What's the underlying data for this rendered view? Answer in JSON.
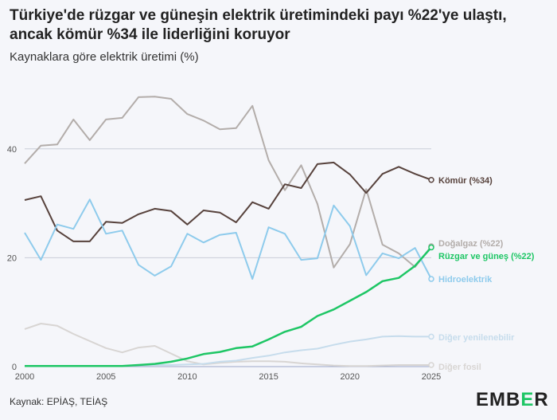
{
  "title": "Türkiye'de rüzgar ve güneşin elektrik üretimindeki payı %22'ye ulaştı, ancak kömür %34 ile liderliğini koruyor",
  "subtitle": "Kaynaklara göre elektrik üretimi (%)",
  "source": "Kaynak: EPİAŞ, TEİAŞ",
  "logo": {
    "pre": "EMB",
    "mid": "E",
    "post": "R"
  },
  "chart_data": {
    "type": "line",
    "title": "Türkiye'de rüzgar ve güneşin elektrik üretimindeki payı %22'ye ulaştı, ancak kömür %34 ile liderliğini koruyor",
    "ylabel": "Kaynaklara göre elektrik üretimi (%)",
    "xlabel": "",
    "xlim": [
      2000,
      2025
    ],
    "ylim": [
      0,
      50
    ],
    "x_ticks": [
      "2000",
      "2005",
      "2010",
      "2015",
      "2020",
      "2025"
    ],
    "y_ticks": [
      "0",
      "20",
      "40"
    ],
    "grid": true,
    "x": [
      2000,
      2001,
      2002,
      2003,
      2004,
      2005,
      2006,
      2007,
      2008,
      2009,
      2010,
      2011,
      2012,
      2013,
      2014,
      2015,
      2016,
      2017,
      2018,
      2019,
      2020,
      2021,
      2022,
      2023,
      2024,
      2025
    ],
    "series": [
      {
        "name": "Doğalgaz",
        "label": "Doğalgaz (%22)",
        "color": "#b3adaa",
        "values": [
          37.3,
          40.6,
          40.8,
          45.4,
          41.6,
          45.4,
          45.7,
          49.5,
          49.6,
          49.2,
          46.4,
          45.2,
          43.6,
          43.8,
          47.9,
          37.9,
          32.4,
          37.0,
          29.9,
          18.2,
          22.5,
          32.6,
          22.4,
          20.8,
          18.3,
          22.1
        ]
      },
      {
        "name": "Kömür",
        "label": "Kömür (%34)",
        "color": "#57423c",
        "values": [
          30.6,
          31.3,
          25.0,
          23.0,
          23.0,
          26.6,
          26.4,
          28.0,
          29.0,
          28.6,
          26.1,
          28.7,
          28.3,
          26.5,
          30.2,
          29.0,
          33.5,
          32.8,
          37.2,
          37.5,
          35.3,
          31.9,
          35.4,
          36.7,
          35.4,
          34.3
        ]
      },
      {
        "name": "Hidroelektrik",
        "label": "Hidroelektrik",
        "color": "#8ecbec",
        "values": [
          24.6,
          19.6,
          26.1,
          25.3,
          30.7,
          24.4,
          25.0,
          18.7,
          16.7,
          18.4,
          24.4,
          22.8,
          24.2,
          24.6,
          16.1,
          25.6,
          24.4,
          19.6,
          19.9,
          29.6,
          25.8,
          16.8,
          20.8,
          19.9,
          21.8,
          16.1
        ]
      },
      {
        "name": "Diğer fosil",
        "label": "Diğer fosil",
        "color": "#d8d5d3",
        "values": [
          6.9,
          7.9,
          7.5,
          6.0,
          4.7,
          3.4,
          2.6,
          3.5,
          3.8,
          2.4,
          1.0,
          0.4,
          0.7,
          0.9,
          1.0,
          1.0,
          0.9,
          0.6,
          0.4,
          0.2,
          0.1,
          0.1,
          0.2,
          0.3,
          0.3,
          0.3
        ]
      },
      {
        "name": "Diğer yenilenebilir",
        "label": "Diğer yenilenebilir",
        "color": "#c6dcec",
        "values": [
          0.1,
          0.1,
          0.1,
          0.1,
          0.1,
          0.1,
          0.1,
          0.2,
          0.3,
          0.3,
          0.4,
          0.5,
          0.9,
          1.1,
          1.6,
          2.0,
          2.6,
          3.0,
          3.3,
          4.0,
          4.6,
          5.0,
          5.5,
          5.6,
          5.5,
          5.5
        ]
      },
      {
        "name": "Rüzgar ve güneş",
        "label": "Rüzgar ve güneş (%22)",
        "color": "#1ec665",
        "values": [
          0.1,
          0.1,
          0.1,
          0.1,
          0.1,
          0.1,
          0.1,
          0.3,
          0.5,
          0.9,
          1.5,
          2.3,
          2.7,
          3.4,
          3.7,
          5.0,
          6.4,
          7.3,
          9.3,
          10.5,
          12.1,
          13.7,
          15.7,
          16.3,
          18.5,
          21.9
        ]
      }
    ]
  }
}
